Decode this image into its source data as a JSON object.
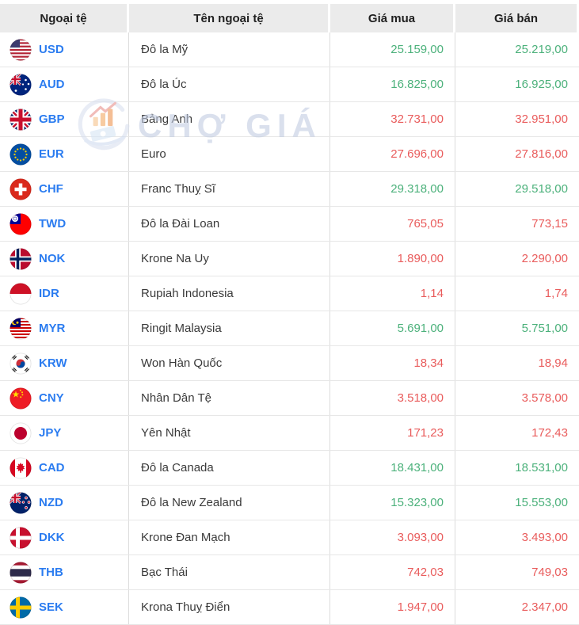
{
  "watermark": {
    "text": "CHỢ GIÁ"
  },
  "colors": {
    "up": "#4cb17b",
    "down": "#e95c5c",
    "code_blue": "#2b7cf0"
  },
  "table": {
    "headers": {
      "currency": "Ngoại tệ",
      "name": "Tên ngoại tệ",
      "buy": "Giá mua",
      "sell": "Giá bán"
    },
    "rows": [
      {
        "code": "USD",
        "flag": "us-flag-icon",
        "name": "Đô la Mỹ",
        "buy": "25.159,00",
        "sell": "25.219,00",
        "buy_trend": "up",
        "sell_trend": "up"
      },
      {
        "code": "AUD",
        "flag": "australia-flag-icon",
        "name": "Đô la Úc",
        "buy": "16.825,00",
        "sell": "16.925,00",
        "buy_trend": "up",
        "sell_trend": "up"
      },
      {
        "code": "GBP",
        "flag": "uk-flag-icon",
        "name": "Bảng Anh",
        "buy": "32.731,00",
        "sell": "32.951,00",
        "buy_trend": "down",
        "sell_trend": "down"
      },
      {
        "code": "EUR",
        "flag": "eu-flag-icon",
        "name": "Euro",
        "buy": "27.696,00",
        "sell": "27.816,00",
        "buy_trend": "down",
        "sell_trend": "down"
      },
      {
        "code": "CHF",
        "flag": "switzerland-flag-icon",
        "name": "Franc Thuỵ Sĩ",
        "buy": "29.318,00",
        "sell": "29.518,00",
        "buy_trend": "up",
        "sell_trend": "up"
      },
      {
        "code": "TWD",
        "flag": "taiwan-flag-icon",
        "name": "Đô la Đài Loan",
        "buy": "765,05",
        "sell": "773,15",
        "buy_trend": "down",
        "sell_trend": "down"
      },
      {
        "code": "NOK",
        "flag": "norway-flag-icon",
        "name": "Krone Na Uy",
        "buy": "1.890,00",
        "sell": "2.290,00",
        "buy_trend": "down",
        "sell_trend": "down"
      },
      {
        "code": "IDR",
        "flag": "indonesia-flag-icon",
        "name": "Rupiah Indonesia",
        "buy": "1,14",
        "sell": "1,74",
        "buy_trend": "down",
        "sell_trend": "down"
      },
      {
        "code": "MYR",
        "flag": "malaysia-flag-icon",
        "name": "Ringit Malaysia",
        "buy": "5.691,00",
        "sell": "5.751,00",
        "buy_trend": "up",
        "sell_trend": "up"
      },
      {
        "code": "KRW",
        "flag": "south-korea-flag-icon",
        "name": "Won Hàn Quốc",
        "buy": "18,34",
        "sell": "18,94",
        "buy_trend": "down",
        "sell_trend": "down"
      },
      {
        "code": "CNY",
        "flag": "china-flag-icon",
        "name": "Nhân Dân Tệ",
        "buy": "3.518,00",
        "sell": "3.578,00",
        "buy_trend": "down",
        "sell_trend": "down"
      },
      {
        "code": "JPY",
        "flag": "japan-flag-icon",
        "name": "Yên Nhật",
        "buy": "171,23",
        "sell": "172,43",
        "buy_trend": "down",
        "sell_trend": "down"
      },
      {
        "code": "CAD",
        "flag": "canada-flag-icon",
        "name": "Đô la Canada",
        "buy": "18.431,00",
        "sell": "18.531,00",
        "buy_trend": "up",
        "sell_trend": "up"
      },
      {
        "code": "NZD",
        "flag": "new-zealand-flag-icon",
        "name": "Đô la New Zealand",
        "buy": "15.323,00",
        "sell": "15.553,00",
        "buy_trend": "up",
        "sell_trend": "up"
      },
      {
        "code": "DKK",
        "flag": "denmark-flag-icon",
        "name": "Krone Đan Mạch",
        "buy": "3.093,00",
        "sell": "3.493,00",
        "buy_trend": "down",
        "sell_trend": "down"
      },
      {
        "code": "THB",
        "flag": "thailand-flag-icon",
        "name": "Bạc Thái",
        "buy": "742,03",
        "sell": "749,03",
        "buy_trend": "down",
        "sell_trend": "down"
      },
      {
        "code": "SEK",
        "flag": "sweden-flag-icon",
        "name": "Krona Thuỵ Điển",
        "buy": "1.947,00",
        "sell": "2.347,00",
        "buy_trend": "down",
        "sell_trend": "down"
      }
    ]
  }
}
